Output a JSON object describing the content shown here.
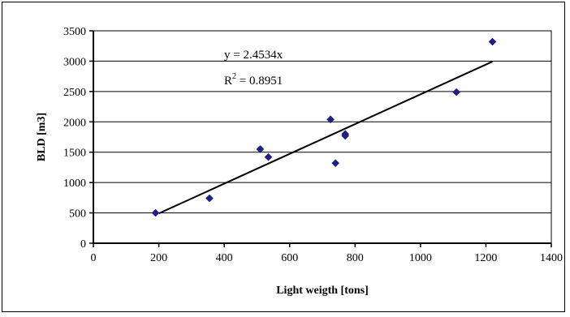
{
  "chart_data": {
    "type": "scatter",
    "title": "",
    "xlabel": "Light weigth [tons]",
    "ylabel": "BLD [m3]",
    "xlim": [
      0,
      1400
    ],
    "ylim": [
      0,
      3500
    ],
    "xticks": [
      0,
      200,
      400,
      600,
      800,
      1000,
      1200,
      1400
    ],
    "yticks": [
      0,
      500,
      1000,
      1500,
      2000,
      2500,
      3000,
      3500
    ],
    "grid": "horizontal",
    "legend": "none",
    "marker": "diamond",
    "marker_color": "#1F1F8C",
    "series": [
      {
        "x": [
          190,
          355,
          510,
          535,
          725,
          740,
          770,
          770,
          1110,
          1220
        ],
        "y": [
          500,
          740,
          1550,
          1420,
          2040,
          1320,
          1800,
          1770,
          2490,
          3320
        ]
      }
    ],
    "trendline": {
      "type": "linear",
      "x_range": [
        200,
        1220
      ],
      "slope": 2.4534,
      "equation": "y = 2.4534x",
      "r2_prefix": "R",
      "r2_sup": "2",
      "r2_suffix": " = 0.8951"
    }
  }
}
